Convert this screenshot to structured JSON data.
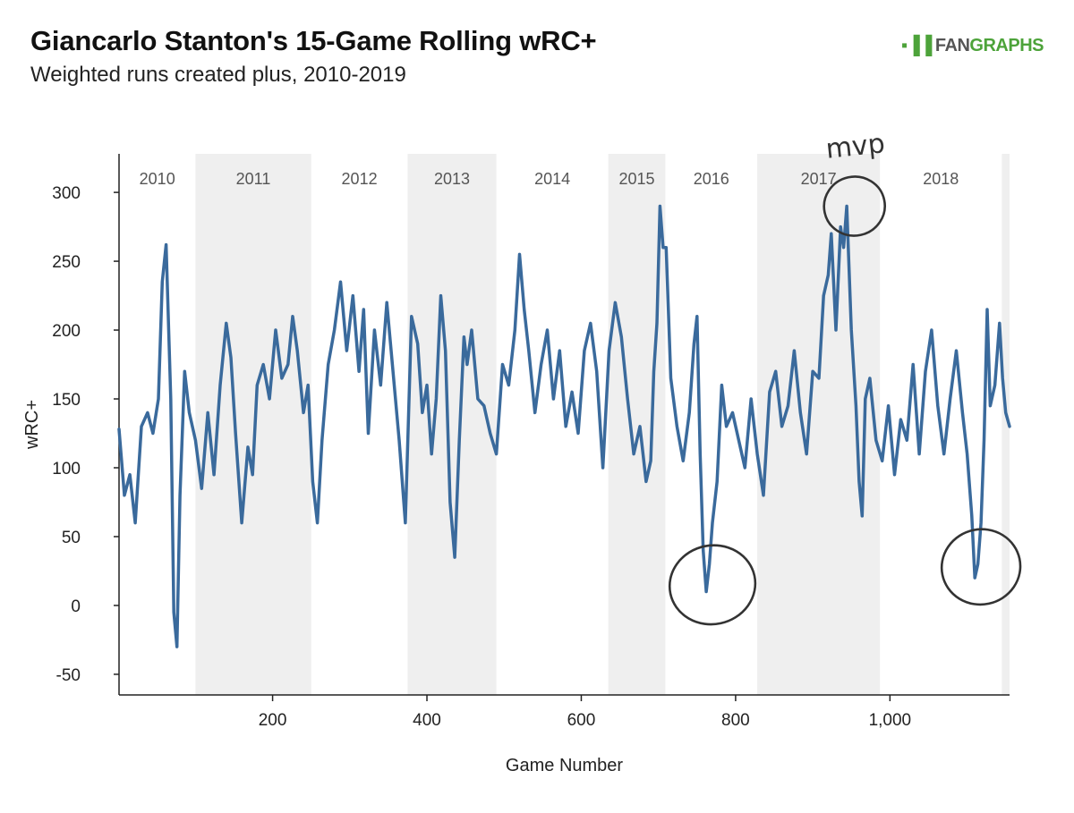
{
  "header": {
    "title": "Giancarlo Stanton's 15-Game Rolling wRC+",
    "subtitle": "Weighted runs created plus, 2010-2019",
    "logo_prefix": "FAN",
    "logo_suffix": "GRAPHS"
  },
  "colors": {
    "line": "#3a6a9c",
    "band": "#efefef",
    "annotation": "#333333",
    "logo_green": "#4da33a"
  },
  "chart_data": {
    "type": "line",
    "xlabel": "Game Number",
    "ylabel": "wRC+",
    "xlim": [
      1,
      1155
    ],
    "ylim": [
      -65,
      328
    ],
    "x_ticks": [
      200,
      400,
      600,
      800,
      1000
    ],
    "x_tick_labels": [
      "200",
      "400",
      "600",
      "800",
      "1,000"
    ],
    "y_ticks": [
      -50,
      0,
      50,
      100,
      150,
      200,
      250,
      300
    ],
    "y_tick_labels": [
      "-50",
      "0",
      "50",
      "100",
      "150",
      "200",
      "250",
      "300"
    ],
    "grid": false,
    "season_bands": [
      {
        "label": "2010",
        "start": 1,
        "end": 100,
        "shaded": false
      },
      {
        "label": "2011",
        "start": 100,
        "end": 250,
        "shaded": true
      },
      {
        "label": "2012",
        "start": 250,
        "end": 375,
        "shaded": false
      },
      {
        "label": "2013",
        "start": 375,
        "end": 490,
        "shaded": true
      },
      {
        "label": "2014",
        "start": 490,
        "end": 635,
        "shaded": false
      },
      {
        "label": "2015",
        "start": 635,
        "end": 709,
        "shaded": true
      },
      {
        "label": "2016",
        "start": 709,
        "end": 828,
        "shaded": false
      },
      {
        "label": "2017",
        "start": 828,
        "end": 987,
        "shaded": true
      },
      {
        "label": "2018",
        "start": 987,
        "end": 1145,
        "shaded": false
      },
      {
        "label": "",
        "start": 1145,
        "end": 1155,
        "shaded": true
      }
    ],
    "series": [
      {
        "x": [
          1,
          8,
          15,
          22,
          30,
          38,
          45,
          52,
          57,
          62,
          68,
          72,
          76,
          80,
          86,
          92,
          100,
          108,
          116,
          124,
          132,
          140,
          146,
          152,
          160,
          168,
          174,
          180,
          188,
          196,
          204,
          212,
          220,
          226,
          232,
          240,
          246,
          252,
          258,
          264,
          272,
          280,
          288,
          296,
          304,
          312,
          318,
          324,
          332,
          340,
          348,
          356,
          364,
          372,
          380,
          388,
          394,
          400,
          406,
          412,
          418,
          424,
          430,
          436,
          442,
          448,
          452,
          458,
          466,
          474,
          482,
          490,
          498,
          506,
          514,
          520,
          526,
          532,
          540,
          548,
          556,
          564,
          572,
          580,
          588,
          596,
          604,
          612,
          620,
          628,
          636,
          644,
          652,
          660,
          668,
          676,
          684,
          690,
          694,
          698,
          702,
          706,
          710,
          716,
          724,
          732,
          740,
          746,
          750,
          754,
          758,
          762,
          766,
          770,
          776,
          782,
          788,
          796,
          804,
          812,
          820,
          828,
          836,
          844,
          852,
          860,
          868,
          876,
          884,
          892,
          900,
          908,
          914,
          920,
          924,
          930,
          936,
          940,
          944,
          950,
          956,
          960,
          964,
          968,
          974,
          982,
          990,
          998,
          1006,
          1014,
          1022,
          1030,
          1038,
          1046,
          1054,
          1062,
          1070,
          1078,
          1086,
          1094,
          1100,
          1106,
          1110,
          1114,
          1118,
          1122,
          1126,
          1130,
          1136,
          1142,
          1146,
          1150,
          1155
        ],
        "values": [
          128,
          80,
          95,
          60,
          130,
          140,
          125,
          150,
          235,
          262,
          150,
          -5,
          -30,
          80,
          170,
          140,
          120,
          85,
          140,
          95,
          160,
          205,
          180,
          125,
          60,
          115,
          95,
          160,
          175,
          150,
          200,
          165,
          175,
          210,
          185,
          140,
          160,
          90,
          60,
          120,
          175,
          200,
          235,
          185,
          225,
          170,
          215,
          125,
          200,
          160,
          220,
          170,
          120,
          60,
          210,
          190,
          140,
          160,
          110,
          150,
          225,
          185,
          75,
          35,
          120,
          195,
          175,
          200,
          150,
          145,
          125,
          110,
          175,
          160,
          200,
          255,
          215,
          185,
          140,
          175,
          200,
          150,
          185,
          130,
          155,
          125,
          185,
          205,
          170,
          100,
          185,
          220,
          195,
          150,
          110,
          130,
          90,
          105,
          170,
          205,
          290,
          260,
          260,
          165,
          130,
          105,
          140,
          190,
          210,
          110,
          40,
          10,
          30,
          60,
          90,
          160,
          130,
          140,
          120,
          100,
          150,
          110,
          80,
          155,
          170,
          130,
          145,
          185,
          140,
          110,
          170,
          165,
          225,
          240,
          270,
          200,
          275,
          260,
          290,
          200,
          145,
          90,
          65,
          150,
          165,
          120,
          105,
          145,
          95,
          135,
          120,
          175,
          110,
          170,
          200,
          145,
          110,
          150,
          185,
          140,
          110,
          65,
          20,
          30,
          60,
          120,
          215,
          145,
          160,
          205,
          165,
          140,
          130
        ]
      }
    ],
    "annotations": [
      {
        "type": "circle",
        "label": "",
        "x": 770,
        "y": 15
      },
      {
        "type": "circle",
        "label": "mvp",
        "x": 954,
        "y": 290
      },
      {
        "type": "circle",
        "label": "",
        "x": 1118,
        "y": 28
      }
    ]
  }
}
